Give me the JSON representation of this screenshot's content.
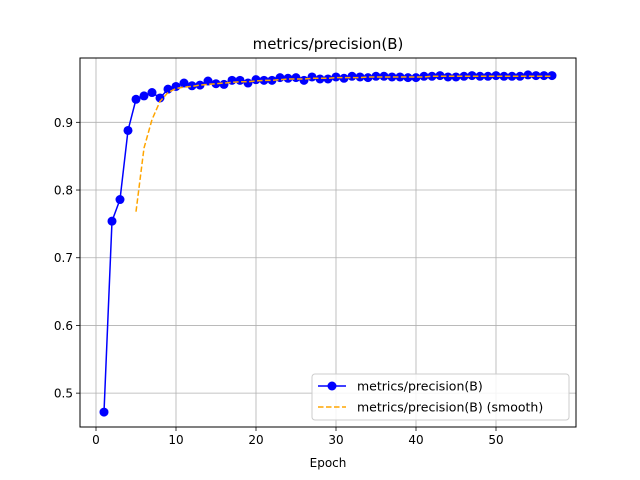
{
  "chart_data": {
    "type": "line",
    "title": "metrics/precision(B)",
    "xlabel": "Epoch",
    "ylabel": "",
    "xlim": [
      -2,
      60
    ],
    "ylim": [
      0.45,
      0.995
    ],
    "xticks": [
      0,
      10,
      20,
      30,
      40,
      50
    ],
    "yticks": [
      0.5,
      0.6,
      0.7,
      0.8,
      0.9
    ],
    "grid": true,
    "legend_position": "lower-right",
    "series": [
      {
        "name": "metrics/precision(B)",
        "color": "#0000ff",
        "style": "solid-marker",
        "x": [
          1,
          2,
          3,
          4,
          5,
          6,
          7,
          8,
          9,
          10,
          11,
          12,
          13,
          14,
          15,
          16,
          17,
          18,
          19,
          20,
          21,
          22,
          23,
          24,
          25,
          26,
          27,
          28,
          29,
          30,
          31,
          32,
          33,
          34,
          35,
          36,
          37,
          38,
          39,
          40,
          41,
          42,
          43,
          44,
          45,
          46,
          47,
          48,
          49,
          50,
          51,
          52,
          53,
          54,
          55,
          56,
          57
        ],
        "values": [
          0.472,
          0.754,
          0.786,
          0.888,
          0.934,
          0.939,
          0.944,
          0.936,
          0.949,
          0.953,
          0.958,
          0.954,
          0.955,
          0.961,
          0.957,
          0.956,
          0.962,
          0.962,
          0.958,
          0.963,
          0.962,
          0.962,
          0.966,
          0.965,
          0.966,
          0.962,
          0.967,
          0.964,
          0.964,
          0.967,
          0.965,
          0.968,
          0.967,
          0.966,
          0.968,
          0.968,
          0.967,
          0.967,
          0.966,
          0.966,
          0.968,
          0.968,
          0.969,
          0.967,
          0.967,
          0.968,
          0.969,
          0.968,
          0.968,
          0.969,
          0.968,
          0.968,
          0.968,
          0.97,
          0.969,
          0.969,
          0.969
        ]
      },
      {
        "name": "metrics/precision(B) (smooth)",
        "color": "#ffa500",
        "style": "dashed",
        "x": [
          5,
          6,
          7,
          8,
          9,
          10,
          11,
          12,
          13,
          14,
          15,
          16,
          17,
          18,
          19,
          20,
          21,
          22,
          23,
          24,
          25,
          26,
          27,
          28,
          29,
          30,
          31,
          32,
          33,
          34,
          35,
          36,
          37,
          38,
          39,
          40,
          41,
          42,
          43,
          44,
          45,
          46,
          47,
          48,
          49,
          50,
          51,
          52,
          53,
          54,
          55,
          56,
          57
        ],
        "values": [
          0.768,
          0.862,
          0.904,
          0.931,
          0.944,
          0.95,
          0.952,
          0.953,
          0.955,
          0.956,
          0.957,
          0.958,
          0.959,
          0.96,
          0.96,
          0.961,
          0.962,
          0.962,
          0.963,
          0.964,
          0.964,
          0.964,
          0.965,
          0.965,
          0.965,
          0.966,
          0.966,
          0.966,
          0.966,
          0.967,
          0.967,
          0.967,
          0.967,
          0.967,
          0.967,
          0.967,
          0.967,
          0.968,
          0.968,
          0.968,
          0.968,
          0.968,
          0.968,
          0.968,
          0.968,
          0.968,
          0.968,
          0.968,
          0.968,
          0.968,
          0.968,
          0.968,
          0.968
        ]
      }
    ]
  }
}
